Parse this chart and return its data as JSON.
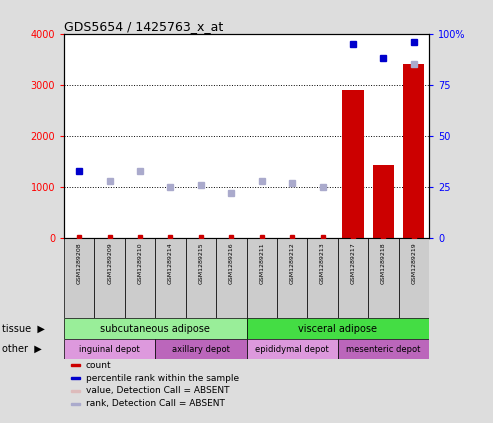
{
  "title": "GDS5654 / 1425763_x_at",
  "samples": [
    "GSM1289208",
    "GSM1289209",
    "GSM1289210",
    "GSM1289214",
    "GSM1289215",
    "GSM1289216",
    "GSM1289211",
    "GSM1289212",
    "GSM1289213",
    "GSM1289217",
    "GSM1289218",
    "GSM1289219"
  ],
  "bar_values": [
    0,
    0,
    0,
    0,
    0,
    0,
    0,
    0,
    0,
    2900,
    1430,
    3400
  ],
  "bar_color": "#cc0000",
  "dot_rank_present": [
    33,
    null,
    null,
    null,
    null,
    null,
    null,
    null,
    null,
    95,
    88,
    96
  ],
  "dot_rank_absent": [
    null,
    28,
    33,
    25,
    26,
    22,
    28,
    27,
    25,
    null,
    null,
    85
  ],
  "dot_count_y": [
    0,
    0,
    0,
    0,
    0,
    0,
    0,
    0,
    0,
    0,
    0,
    0
  ],
  "dark_blue_color": "#0000cc",
  "light_blue_color": "#aaaacc",
  "small_red_color": "#cc0000",
  "ylim_left": [
    0,
    4000
  ],
  "ylim_right": [
    0,
    100
  ],
  "yticks_left": [
    0,
    1000,
    2000,
    3000,
    4000
  ],
  "yticks_right": [
    0,
    25,
    50,
    75,
    100
  ],
  "ytick_labels_right": [
    "0",
    "25",
    "50",
    "75",
    "100%"
  ],
  "bg_color": "#dddddd",
  "plot_bg": "#ffffff",
  "tissue_groups": [
    {
      "label": "subcutaneous adipose",
      "start": 0,
      "end": 6,
      "color": "#99ee99"
    },
    {
      "label": "visceral adipose",
      "start": 6,
      "end": 12,
      "color": "#44dd44"
    }
  ],
  "other_groups": [
    {
      "label": "inguinal depot",
      "start": 0,
      "end": 3,
      "color": "#dd99dd"
    },
    {
      "label": "axillary depot",
      "start": 3,
      "end": 6,
      "color": "#bb66bb"
    },
    {
      "label": "epididymal depot",
      "start": 6,
      "end": 9,
      "color": "#dd99dd"
    },
    {
      "label": "mesenteric depot",
      "start": 9,
      "end": 12,
      "color": "#bb66bb"
    }
  ],
  "legend_items": [
    {
      "color": "#cc0000",
      "label": "count"
    },
    {
      "color": "#0000cc",
      "label": "percentile rank within the sample"
    },
    {
      "color": "#ddbbbb",
      "label": "value, Detection Call = ABSENT"
    },
    {
      "color": "#aaaacc",
      "label": "rank, Detection Call = ABSENT"
    }
  ]
}
